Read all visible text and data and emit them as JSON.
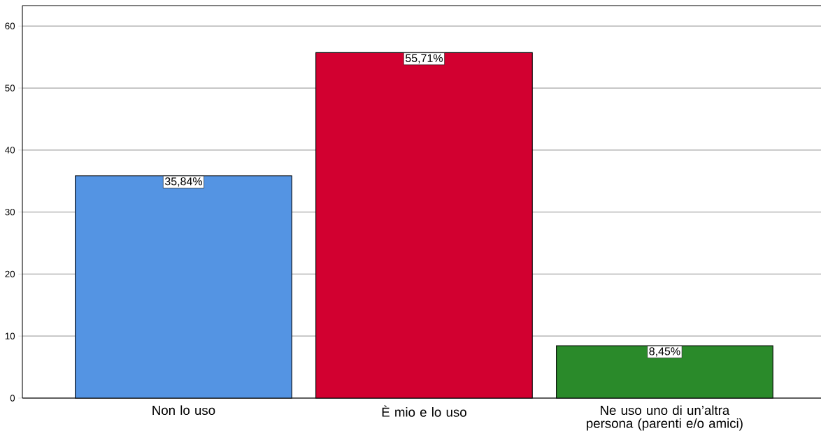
{
  "chart_data": {
    "type": "bar",
    "categories": [
      "Non lo uso",
      "È mio e lo uso",
      "Ne uso uno di un’altra persona (parenti e/o amici)"
    ],
    "values": [
      35.84,
      55.71,
      8.45
    ],
    "value_labels": [
      "35,84%",
      "55,71%",
      "8,45%"
    ],
    "colors": [
      "#5494e3",
      "#d20030",
      "#2a8a2a"
    ],
    "ylim": [
      0,
      63.3
    ],
    "yticks": [
      0,
      10,
      20,
      30,
      40,
      50,
      60
    ],
    "grid": "y"
  }
}
